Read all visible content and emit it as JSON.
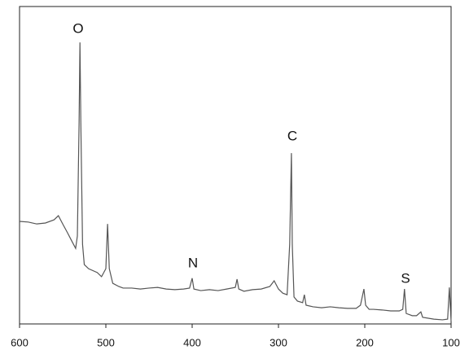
{
  "chart_data": {
    "type": "line",
    "annotations": [
      "O",
      "N",
      "C",
      "S"
    ],
    "x": [
      600,
      590,
      580,
      570,
      560,
      555,
      550,
      545,
      540,
      535,
      533,
      531,
      530,
      529,
      527,
      525,
      520,
      510,
      505,
      500,
      498,
      496,
      492,
      485,
      480,
      470,
      460,
      450,
      440,
      430,
      420,
      410,
      403,
      400,
      398,
      390,
      380,
      370,
      360,
      350,
      348,
      346,
      340,
      330,
      320,
      310,
      305,
      300,
      295,
      290,
      287,
      285,
      284,
      282,
      278,
      272,
      270,
      268,
      260,
      250,
      240,
      230,
      220,
      210,
      205,
      201,
      199,
      195,
      190,
      180,
      170,
      160,
      156,
      154,
      152,
      145,
      140,
      135,
      133,
      120,
      110,
      104,
      102,
      100
    ],
    "series": [
      {
        "color": "#555555",
        "values": [
          32.3,
          32.1,
          31.5,
          31.8,
          32.8,
          34.1,
          31.5,
          29.0,
          26.4,
          23.8,
          27.7,
          63.6,
          88.7,
          63.6,
          25.1,
          18.7,
          17.4,
          16.2,
          14.9,
          17.4,
          31.5,
          17.4,
          12.8,
          11.8,
          11.3,
          11.3,
          11.0,
          11.3,
          11.5,
          11.0,
          10.8,
          11.0,
          11.3,
          14.4,
          11.0,
          10.5,
          10.8,
          10.5,
          11.0,
          11.5,
          14.1,
          11.0,
          10.3,
          10.8,
          11.0,
          11.8,
          13.6,
          11.0,
          9.7,
          9.2,
          25.1,
          53.8,
          25.1,
          8.5,
          7.2,
          6.7,
          9.2,
          5.9,
          5.4,
          5.1,
          5.4,
          5.1,
          4.9,
          4.9,
          5.9,
          11.0,
          5.9,
          4.6,
          4.6,
          4.4,
          4.1,
          4.1,
          4.6,
          11.0,
          3.3,
          2.6,
          2.6,
          3.8,
          2.1,
          1.5,
          1.3,
          1.5,
          11.5,
          0.8
        ]
      }
    ],
    "xlim": [
      600,
      100
    ],
    "xticks": [
      600,
      500,
      400,
      300,
      200,
      100
    ],
    "ylim": [
      0,
      100
    ]
  }
}
